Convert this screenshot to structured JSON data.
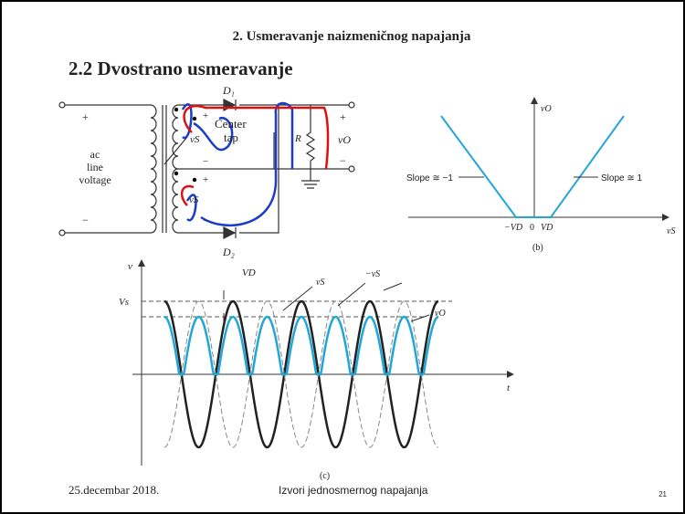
{
  "header": {
    "title": "2. Usmeravanje naizmeničnog napajanja",
    "section": "2.2 Dvostrano usmeravanje"
  },
  "circuit": {
    "d1": "D₁",
    "d2": "D₂",
    "center_tap": [
      "Center",
      "tap"
    ],
    "source": [
      "ac",
      "line",
      "voltage"
    ],
    "plus": "+",
    "minus": "−",
    "vs_top": "vS",
    "vs_bottom": "vS",
    "vo": "vO",
    "r": "R"
  },
  "transfer": {
    "y_label": "vO",
    "x_label": "vS",
    "slope_left": "Slope ≅ −1",
    "slope_right": "Slope ≅ 1",
    "neg_vd": "−VD",
    "zero": "0",
    "vd": "VD",
    "caption": "(b)"
  },
  "waveform": {
    "y_label": "v",
    "x_label": "t",
    "vd": "VD",
    "vs_level": "Vs",
    "vs": "vS",
    "neg_vs": "−vS",
    "vo": "vO",
    "caption": "(c)"
  },
  "footer": {
    "date": "25.decembar 2018.",
    "course": "Izvori jednosmernog napajanja",
    "page": "21"
  }
}
